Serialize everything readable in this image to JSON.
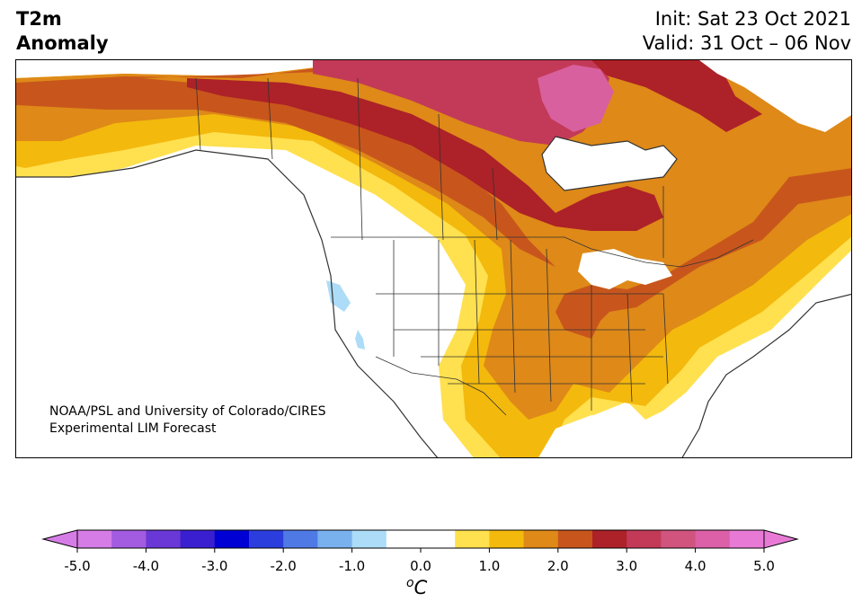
{
  "title": {
    "line1": "T2m",
    "line2": "Anomaly"
  },
  "dates": {
    "init": "Init: Sat 23 Oct 2021",
    "valid": "Valid: 31 Oct – 06 Nov"
  },
  "credit": {
    "line1": "NOAA/PSL and University of Colorado/CIRES",
    "line2": "Experimental LIM Forecast"
  },
  "colorbar": {
    "unit_label": "C",
    "unit_prefix": "o",
    "ticks": [
      "-5.0",
      "-4.0",
      "-3.0",
      "-2.0",
      "-1.0",
      "0.0",
      "1.0",
      "2.0",
      "3.0",
      "4.0",
      "5.0"
    ],
    "under_color": "#d57ce6",
    "over_color": "#e87ad6",
    "colors": [
      "#d57ce6",
      "#a35ce0",
      "#6a38d6",
      "#3a1fd0",
      "#0000d4",
      "#2b3ddc",
      "#4f7ae6",
      "#79b1ee",
      "#acdcf7",
      "#ffffff",
      "#ffffff",
      "#ffe04f",
      "#f3b90c",
      "#de8918",
      "#c8561c",
      "#ad2128",
      "#c33a58",
      "#d0547e",
      "#db60a8",
      "#e87ad6"
    ]
  },
  "map_colors": {
    "land_zero": "#ffffff",
    "anom_0_5": "#ffe04f",
    "anom_1_0": "#f3b90c",
    "anom_1_5": "#de8918",
    "anom_2_0": "#c8561c",
    "anom_2_5": "#ad2128",
    "anom_3_5": "#c33a58",
    "anom_4_0": "#d9609e",
    "neg_0_5": "#acdcf7",
    "borders": "#333333"
  }
}
